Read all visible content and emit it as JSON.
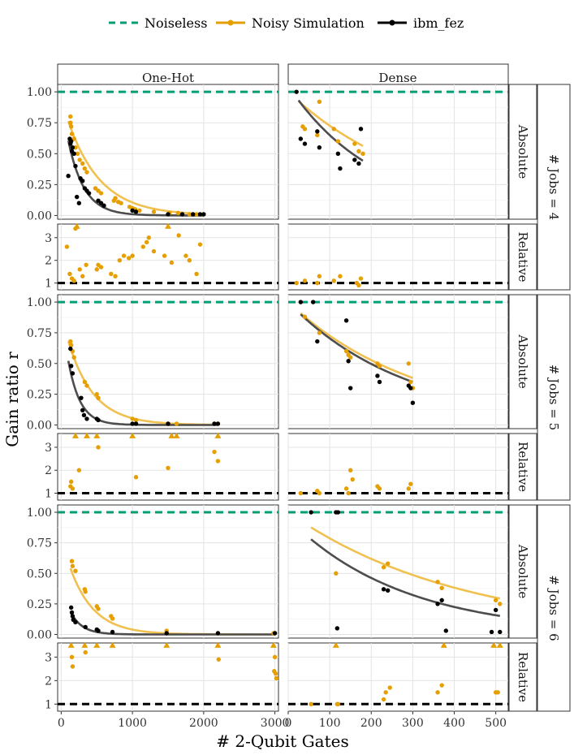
{
  "legend": {
    "items": [
      {
        "label": "Noiseless",
        "color": "#009E73",
        "style": "dashed"
      },
      {
        "label": "Noisy Simulation",
        "color": "#E69F00",
        "style": "solid"
      },
      {
        "label": "ibm_fez",
        "color": "#000000",
        "style": "solid"
      }
    ]
  },
  "axes": {
    "xlabel": "# 2-Qubit Gates",
    "ylabel": "Gain ratio r"
  },
  "facets": {
    "columns": [
      "One-Hot",
      "Dense"
    ],
    "metric_rows": [
      "Absolute",
      "Relative"
    ],
    "job_groups": [
      "# Jobs = 4",
      "# Jobs = 5",
      "# Jobs = 6"
    ]
  },
  "chart_data": {
    "type": "scatter",
    "x_ticks": {
      "One-Hot": [
        0,
        1000,
        2000,
        3000
      ],
      "Dense": [
        0,
        100,
        200,
        300,
        400,
        500
      ]
    },
    "xlim": {
      "One-Hot": [
        -50,
        3050
      ],
      "Dense": [
        0,
        530
      ]
    },
    "absolute_ylim": [
      -0.03,
      1.06
    ],
    "absolute_yticks": [
      "0.00",
      "0.25",
      "0.50",
      "0.75",
      "1.00"
    ],
    "relative_ylim": [
      0.7,
      3.6
    ],
    "relative_yticks": [
      "1",
      "2",
      "3"
    ],
    "noiseless_reference": 1.0,
    "relative_reference": 1.0,
    "relative_clip_value": 3.5,
    "colors": {
      "noiseless": "#009E73",
      "noisy": "#E69F00",
      "ibm": "#000000",
      "fit_noisy": "#F0C050",
      "fit_ibm": "#4D4D4D"
    },
    "panels": [
      {
        "jobs": 4,
        "encoding": "One-Hot",
        "noisy_abs": [
          [
            130,
            0.8
          ],
          [
            130,
            0.75
          ],
          [
            140,
            0.72
          ],
          [
            150,
            0.66
          ],
          [
            180,
            0.62
          ],
          [
            200,
            0.55
          ],
          [
            230,
            0.5
          ],
          [
            260,
            0.45
          ],
          [
            300,
            0.42
          ],
          [
            330,
            0.38
          ],
          [
            360,
            0.35
          ],
          [
            480,
            0.22
          ],
          [
            520,
            0.2
          ],
          [
            560,
            0.18
          ],
          [
            740,
            0.12
          ],
          [
            760,
            0.14
          ],
          [
            800,
            0.11
          ],
          [
            840,
            0.1
          ],
          [
            960,
            0.07
          ],
          [
            1000,
            0.06
          ],
          [
            1040,
            0.05
          ],
          [
            1100,
            0.04
          ],
          [
            1300,
            0.03
          ],
          [
            1520,
            0.02
          ],
          [
            1640,
            0.02
          ],
          [
            1800,
            0.01
          ],
          [
            1900,
            0.01
          ],
          [
            2000,
            0.01
          ]
        ],
        "ibm_abs": [
          [
            120,
            0.62
          ],
          [
            130,
            0.58
          ],
          [
            140,
            0.6
          ],
          [
            150,
            0.52
          ],
          [
            160,
            0.55
          ],
          [
            180,
            0.5
          ],
          [
            200,
            0.4
          ],
          [
            220,
            0.15
          ],
          [
            250,
            0.1
          ],
          [
            270,
            0.3
          ],
          [
            300,
            0.28
          ],
          [
            330,
            0.22
          ],
          [
            360,
            0.2
          ],
          [
            390,
            0.18
          ],
          [
            100,
            0.32
          ],
          [
            520,
            0.12
          ],
          [
            560,
            0.1
          ],
          [
            600,
            0.08
          ],
          [
            1000,
            0.04
          ],
          [
            1050,
            0.03
          ],
          [
            1500,
            0.01
          ],
          [
            1700,
            0.01
          ],
          [
            1850,
            0.01
          ],
          [
            1950,
            0.01
          ],
          [
            2000,
            0.01
          ]
        ],
        "fit_noisy": {
          "a": 0.95,
          "b": 0.0022,
          "x": [
            100,
            2000
          ]
        },
        "fit_ibm": {
          "a": 0.95,
          "b": 0.0045,
          "x": [
            100,
            2000
          ]
        },
        "noisy_rel": [
          [
            80,
            2.6
          ],
          [
            120,
            1.4
          ],
          [
            150,
            1.2
          ],
          [
            180,
            1.1
          ],
          [
            200,
            3.4
          ],
          [
            220,
            3.5
          ],
          [
            260,
            1.6
          ],
          [
            300,
            1.3
          ],
          [
            350,
            1.8
          ],
          [
            500,
            1.6
          ],
          [
            520,
            1.8
          ],
          [
            560,
            1.7
          ],
          [
            700,
            1.4
          ],
          [
            760,
            1.3
          ],
          [
            820,
            2.0
          ],
          [
            880,
            2.2
          ],
          [
            950,
            2.1
          ],
          [
            1000,
            2.2
          ],
          [
            1150,
            2.6
          ],
          [
            1200,
            2.8
          ],
          [
            1230,
            3.0
          ],
          [
            1300,
            2.4
          ],
          [
            1450,
            2.2
          ],
          [
            1500,
            3.5
          ],
          [
            1550,
            1.9
          ],
          [
            1650,
            3.1
          ],
          [
            1750,
            2.2
          ],
          [
            1800,
            2.0
          ],
          [
            1900,
            1.4
          ],
          [
            1950,
            2.7
          ]
        ]
      },
      {
        "jobs": 4,
        "encoding": "Dense",
        "noisy_abs": [
          [
            35,
            0.72
          ],
          [
            40,
            0.7
          ],
          [
            70,
            0.65
          ],
          [
            75,
            0.92
          ],
          [
            110,
            0.7
          ],
          [
            120,
            0.6
          ],
          [
            160,
            0.58
          ],
          [
            170,
            0.52
          ],
          [
            180,
            0.5
          ]
        ],
        "ibm_abs": [
          [
            20,
            1.0
          ],
          [
            30,
            0.62
          ],
          [
            40,
            0.58
          ],
          [
            70,
            0.68
          ],
          [
            75,
            0.55
          ],
          [
            120,
            0.5
          ],
          [
            125,
            0.38
          ],
          [
            160,
            0.45
          ],
          [
            170,
            0.42
          ],
          [
            175,
            0.7
          ]
        ],
        "fit_noisy": {
          "a": 1.0,
          "b": 0.0032,
          "x": [
            25,
            180
          ]
        },
        "fit_ibm": {
          "a": 1.05,
          "b": 0.0048,
          "x": [
            25,
            180
          ]
        },
        "noisy_rel": [
          [
            20,
            1.0
          ],
          [
            40,
            1.1
          ],
          [
            70,
            1.0
          ],
          [
            75,
            1.3
          ],
          [
            110,
            1.1
          ],
          [
            125,
            1.3
          ],
          [
            165,
            1.0
          ],
          [
            170,
            0.9
          ],
          [
            175,
            1.2
          ]
        ]
      },
      {
        "jobs": 5,
        "encoding": "One-Hot",
        "noisy_abs": [
          [
            130,
            0.68
          ],
          [
            140,
            0.65
          ],
          [
            160,
            0.6
          ],
          [
            180,
            0.55
          ],
          [
            330,
            0.35
          ],
          [
            360,
            0.32
          ],
          [
            500,
            0.25
          ],
          [
            520,
            0.22
          ],
          [
            1000,
            0.05
          ],
          [
            1050,
            0.04
          ],
          [
            1500,
            0.01
          ],
          [
            1620,
            0.01
          ],
          [
            2150,
            0.01
          ],
          [
            2200,
            0.01
          ]
        ],
        "ibm_abs": [
          [
            130,
            0.62
          ],
          [
            140,
            0.48
          ],
          [
            160,
            0.42
          ],
          [
            280,
            0.22
          ],
          [
            300,
            0.12
          ],
          [
            320,
            0.08
          ],
          [
            360,
            0.05
          ],
          [
            500,
            0.05
          ],
          [
            520,
            0.04
          ],
          [
            1000,
            0.01
          ],
          [
            1050,
            0.01
          ],
          [
            1500,
            0.01
          ],
          [
            2150,
            0.01
          ],
          [
            2200,
            0.01
          ]
        ],
        "fit_noisy": {
          "a": 0.9,
          "b": 0.0028,
          "x": [
            100,
            2200
          ]
        },
        "fit_ibm": {
          "a": 0.95,
          "b": 0.006,
          "x": [
            100,
            2200
          ]
        },
        "noisy_rel": [
          [
            130,
            1.3
          ],
          [
            140,
            1.5
          ],
          [
            160,
            1.2
          ],
          [
            200,
            3.5
          ],
          [
            250,
            2.0
          ],
          [
            360,
            3.5
          ],
          [
            500,
            3.5
          ],
          [
            520,
            3.0
          ],
          [
            1000,
            3.5
          ],
          [
            1050,
            1.7
          ],
          [
            1500,
            2.1
          ],
          [
            1550,
            3.5
          ],
          [
            1620,
            3.5
          ],
          [
            2150,
            2.8
          ],
          [
            2200,
            2.4
          ],
          [
            2200,
            3.5
          ]
        ]
      },
      {
        "jobs": 5,
        "encoding": "Dense",
        "noisy_abs": [
          [
            40,
            0.88
          ],
          [
            75,
            0.75
          ],
          [
            140,
            0.6
          ],
          [
            145,
            0.57
          ],
          [
            150,
            0.55
          ],
          [
            215,
            0.5
          ],
          [
            220,
            0.48
          ],
          [
            290,
            0.5
          ],
          [
            295,
            0.35
          ],
          [
            300,
            0.3
          ]
        ],
        "ibm_abs": [
          [
            30,
            1.0
          ],
          [
            60,
            1.0
          ],
          [
            70,
            0.68
          ],
          [
            140,
            0.85
          ],
          [
            145,
            0.52
          ],
          [
            150,
            0.3
          ],
          [
            215,
            0.4
          ],
          [
            220,
            0.35
          ],
          [
            290,
            0.32
          ],
          [
            295,
            0.3
          ],
          [
            300,
            0.18
          ]
        ],
        "fit_noisy": {
          "a": 1.0,
          "b": 0.0032,
          "x": [
            30,
            300
          ]
        },
        "fit_ibm": {
          "a": 1.0,
          "b": 0.0035,
          "x": [
            30,
            300
          ]
        },
        "noisy_rel": [
          [
            30,
            1.0
          ],
          [
            70,
            1.1
          ],
          [
            75,
            1.0
          ],
          [
            140,
            1.2
          ],
          [
            145,
            1.0
          ],
          [
            150,
            2.0
          ],
          [
            155,
            1.6
          ],
          [
            215,
            1.3
          ],
          [
            220,
            1.2
          ],
          [
            290,
            1.2
          ],
          [
            295,
            1.4
          ]
        ]
      },
      {
        "jobs": 6,
        "encoding": "One-Hot",
        "noisy_abs": [
          [
            150,
            0.6
          ],
          [
            160,
            0.56
          ],
          [
            200,
            0.52
          ],
          [
            330,
            0.37
          ],
          [
            340,
            0.35
          ],
          [
            500,
            0.23
          ],
          [
            520,
            0.21
          ],
          [
            700,
            0.15
          ],
          [
            720,
            0.13
          ],
          [
            1480,
            0.03
          ],
          [
            2200,
            0.01
          ],
          [
            2980,
            0.01
          ],
          [
            3000,
            0.01
          ]
        ],
        "ibm_abs": [
          [
            140,
            0.22
          ],
          [
            150,
            0.18
          ],
          [
            160,
            0.15
          ],
          [
            170,
            0.12
          ],
          [
            200,
            0.1
          ],
          [
            340,
            0.06
          ],
          [
            500,
            0.04
          ],
          [
            520,
            0.03
          ],
          [
            720,
            0.02
          ],
          [
            1480,
            0.01
          ],
          [
            2200,
            0.01
          ],
          [
            3000,
            0.01
          ]
        ],
        "fit_noisy": {
          "a": 0.8,
          "b": 0.003,
          "x": [
            130,
            3000
          ]
        },
        "fit_ibm": {
          "a": 0.4,
          "b": 0.006,
          "x": [
            130,
            3000
          ]
        },
        "noisy_rel": [
          [
            140,
            3.5
          ],
          [
            150,
            3.0
          ],
          [
            160,
            2.6
          ],
          [
            330,
            3.5
          ],
          [
            340,
            3.2
          ],
          [
            500,
            3.5
          ],
          [
            720,
            3.5
          ],
          [
            1480,
            3.5
          ],
          [
            2200,
            3.5
          ],
          [
            2210,
            2.9
          ],
          [
            2980,
            3.5
          ],
          [
            3000,
            3.0
          ],
          [
            2990,
            2.4
          ],
          [
            3010,
            2.3
          ],
          [
            3020,
            2.1
          ]
        ]
      },
      {
        "jobs": 6,
        "encoding": "Dense",
        "noisy_abs": [
          [
            115,
            0.5
          ],
          [
            230,
            0.55
          ],
          [
            240,
            0.58
          ],
          [
            360,
            0.43
          ],
          [
            370,
            0.38
          ],
          [
            500,
            0.28
          ],
          [
            510,
            0.25
          ]
        ],
        "ibm_abs": [
          [
            55,
            1.0
          ],
          [
            115,
            1.0
          ],
          [
            120,
            1.0
          ],
          [
            118,
            0.05
          ],
          [
            230,
            0.37
          ],
          [
            240,
            0.36
          ],
          [
            360,
            0.25
          ],
          [
            370,
            0.28
          ],
          [
            380,
            0.03
          ],
          [
            490,
            0.02
          ],
          [
            500,
            0.2
          ],
          [
            510,
            0.02
          ]
        ],
        "fit_noisy": {
          "a": 1.0,
          "b": 0.0024,
          "x": [
            55,
            510
          ]
        },
        "fit_ibm": {
          "a": 0.95,
          "b": 0.0036,
          "x": [
            55,
            510
          ]
        },
        "noisy_rel": [
          [
            55,
            1.0
          ],
          [
            115,
            3.5
          ],
          [
            118,
            1.0
          ],
          [
            120,
            1.0
          ],
          [
            230,
            1.2
          ],
          [
            235,
            1.5
          ],
          [
            245,
            1.7
          ],
          [
            360,
            1.5
          ],
          [
            370,
            1.8
          ],
          [
            375,
            3.5
          ],
          [
            495,
            3.5
          ],
          [
            500,
            1.5
          ],
          [
            510,
            3.5
          ],
          [
            505,
            1.5
          ]
        ]
      }
    ]
  }
}
